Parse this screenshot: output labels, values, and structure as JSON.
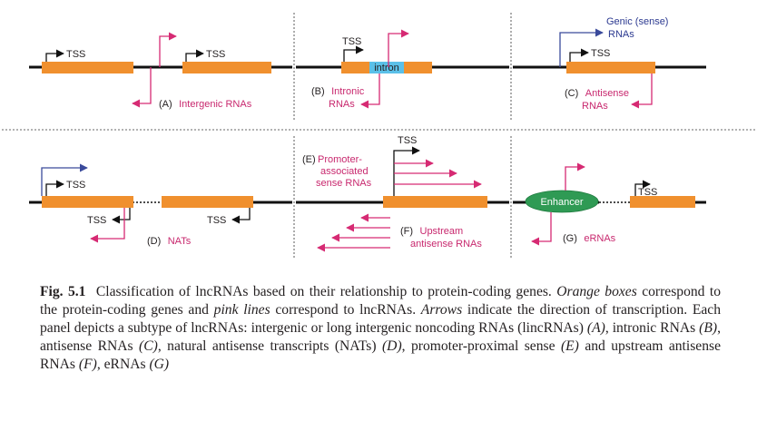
{
  "colors": {
    "gene_box": "#f0902e",
    "lncrna_line": "#d62a73",
    "sense_arrow": "#3a4a9b",
    "intron_box": "#5bc0e8",
    "enhancer": "#2f9a54",
    "dna_line": "#111111",
    "arrow_black": "#111111"
  },
  "labels": {
    "tss": "TSS",
    "intron": "intron",
    "enhancer": "Enhancer",
    "genic_sense_line1": "Genic (sense)",
    "genic_sense_line2": "RNAs",
    "panel_a_letter": "(A)",
    "panel_a_name": "Intergenic RNAs",
    "panel_b_letter": "(B)",
    "panel_b_name1": "Intronic",
    "panel_b_name2": "RNAs",
    "panel_c_letter": "(C)",
    "panel_c_name1": "Antisense",
    "panel_c_name2": "RNAs",
    "panel_d_letter": "(D)",
    "panel_d_name": "NATs",
    "panel_e_letter": "(E)",
    "panel_e_name1": "Promoter-",
    "panel_e_name2": "associated",
    "panel_e_name3": "sense RNAs",
    "panel_f_letter": "(F)",
    "panel_f_name1": "Upstream",
    "panel_f_name2": "antisense RNAs",
    "panel_g_letter": "(G)",
    "panel_g_name": "eRNAs"
  },
  "caption": {
    "fig_label": "Fig. 5.1",
    "t1": "Classification of lncRNAs based on their relationship to protein-coding genes.",
    "i1": "Orange boxes",
    "t2": "correspond to the protein-coding genes and",
    "i2": "pink lines",
    "t3": "correspond to lncRNAs.",
    "i3": "Arrows",
    "t4": "indicate the direction of transcription. Each panel depicts a subtype of lncRNAs: intergenic or long intergenic noncoding RNAs (lincRNAs)",
    "i4": "(A)",
    "t5": ", intronic RNAs",
    "i5": "(B)",
    "t6": ", antisense RNAs",
    "i6": "(C)",
    "t7": ", natural antisense transcripts (NATs)",
    "i7": "(D)",
    "t8": ", promoter-proximal sense",
    "i8": "(E)",
    "t9": "and upstream antisense RNAs",
    "i9": "(F)",
    "t10": ", eRNAs",
    "i10": "(G)"
  }
}
